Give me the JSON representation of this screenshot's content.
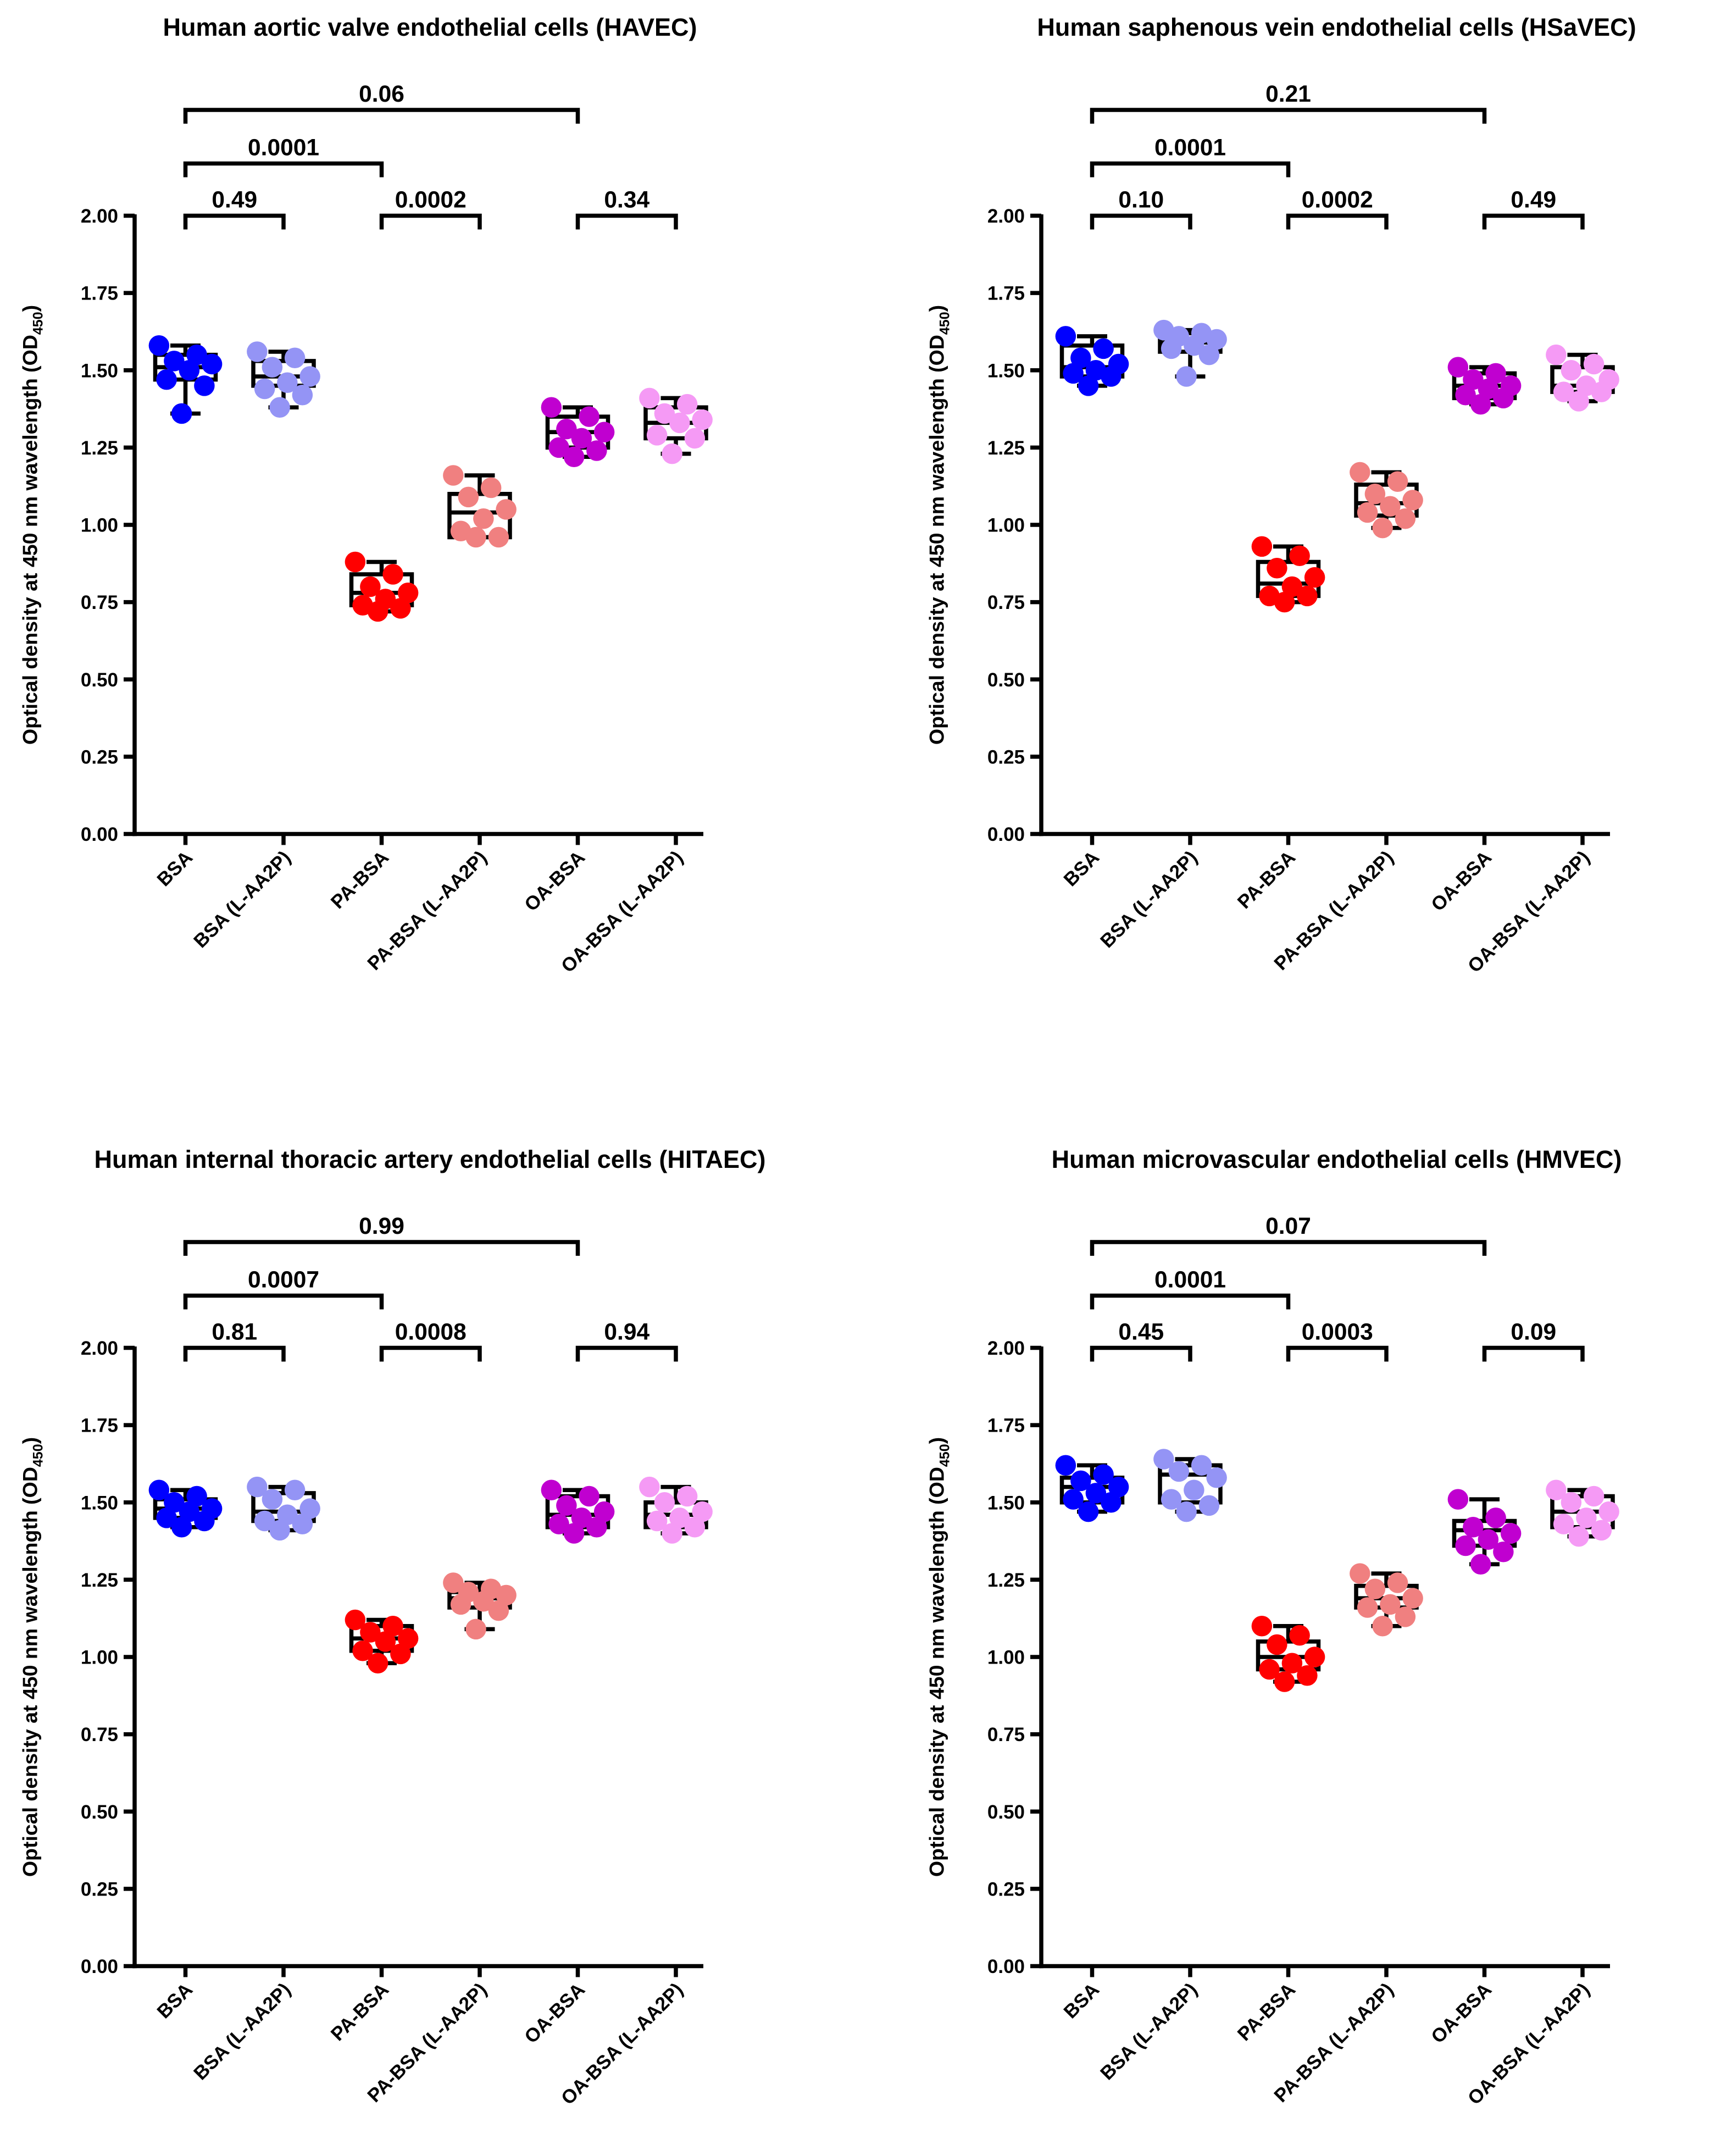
{
  "chart_data": [
    {
      "type": "box",
      "title": "Human aortic valve endothelial cells (HAVEC)",
      "ylabel": [
        "Optical density at 450 nm wavelength (OD",
        "450",
        ")"
      ],
      "ylim": [
        0,
        2
      ],
      "yticks": [
        {
          "value": 0,
          "label": "0.00"
        },
        {
          "value": 0.25,
          "label": "0.25"
        },
        {
          "value": 0.5,
          "label": "0.50"
        },
        {
          "value": 0.75,
          "label": "0.75"
        },
        {
          "value": 1,
          "label": "1.00"
        },
        {
          "value": 1.25,
          "label": "1.25"
        },
        {
          "value": 1.5,
          "label": "1.50"
        },
        {
          "value": 1.75,
          "label": "1.75"
        },
        {
          "value": 2,
          "label": "2.00"
        }
      ],
      "groups": [
        {
          "name": "BSA",
          "color": "#0000ff",
          "box": [
            1.36,
            1.47,
            1.51,
            1.55,
            1.58
          ],
          "points": [
            1.58,
            1.55,
            1.53,
            1.52,
            1.5,
            1.47,
            1.45,
            1.36
          ]
        },
        {
          "name": "BSA (L-AA2P)",
          "color": "#9494f5",
          "box": [
            1.38,
            1.45,
            1.48,
            1.53,
            1.56
          ],
          "points": [
            1.56,
            1.54,
            1.51,
            1.48,
            1.46,
            1.44,
            1.42,
            1.38
          ]
        },
        {
          "name": "PA-BSA",
          "color": "#ff0000",
          "box": [
            0.72,
            0.74,
            0.78,
            0.84,
            0.88
          ],
          "points": [
            0.88,
            0.84,
            0.8,
            0.78,
            0.76,
            0.74,
            0.73,
            0.72
          ]
        },
        {
          "name": "PA-BSA (L-AA2P)",
          "color": "#f08080",
          "box": [
            0.96,
            0.96,
            1.04,
            1.1,
            1.16
          ],
          "points": [
            1.16,
            1.12,
            1.09,
            1.05,
            1.02,
            0.98,
            0.96,
            0.96
          ]
        },
        {
          "name": "OA-BSA",
          "color": "#c000d0",
          "box": [
            1.22,
            1.25,
            1.3,
            1.35,
            1.38
          ],
          "points": [
            1.38,
            1.35,
            1.31,
            1.3,
            1.28,
            1.25,
            1.24,
            1.22
          ]
        },
        {
          "name": "OA-BSA (L-AA2P)",
          "color": "#f59af5",
          "box": [
            1.23,
            1.28,
            1.33,
            1.38,
            1.41
          ],
          "points": [
            1.41,
            1.39,
            1.36,
            1.34,
            1.33,
            1.29,
            1.28,
            1.23
          ]
        }
      ],
      "comparisons": [
        {
          "from": 0,
          "to": 4,
          "label": "0.06"
        },
        {
          "from": 0,
          "to": 2,
          "label": "0.0001"
        },
        {
          "from": 0,
          "to": 1,
          "label": "0.49"
        },
        {
          "from": 2,
          "to": 3,
          "label": "0.0002"
        },
        {
          "from": 4,
          "to": 5,
          "label": "0.34"
        }
      ]
    },
    {
      "type": "box",
      "title": "Human saphenous vein endothelial cells (HSaVEC)",
      "ylabel": [
        "Optical density at 450 nm wavelength (OD",
        "450",
        ")"
      ],
      "ylim": [
        0,
        2
      ],
      "yticks": [
        {
          "value": 0,
          "label": "0.00"
        },
        {
          "value": 0.25,
          "label": "0.25"
        },
        {
          "value": 0.5,
          "label": "0.50"
        },
        {
          "value": 0.75,
          "label": "0.75"
        },
        {
          "value": 1,
          "label": "1.00"
        },
        {
          "value": 1.25,
          "label": "1.25"
        },
        {
          "value": 1.5,
          "label": "1.50"
        },
        {
          "value": 1.75,
          "label": "1.75"
        },
        {
          "value": 2,
          "label": "2.00"
        }
      ],
      "groups": [
        {
          "name": "BSA",
          "color": "#0000ff",
          "box": [
            1.45,
            1.48,
            1.51,
            1.58,
            1.61
          ],
          "points": [
            1.61,
            1.57,
            1.54,
            1.52,
            1.5,
            1.49,
            1.48,
            1.45
          ]
        },
        {
          "name": "BSA (L-AA2P)",
          "color": "#9494f5",
          "box": [
            1.48,
            1.56,
            1.59,
            1.62,
            1.63
          ],
          "points": [
            1.63,
            1.62,
            1.61,
            1.6,
            1.58,
            1.57,
            1.55,
            1.48
          ]
        },
        {
          "name": "PA-BSA",
          "color": "#ff0000",
          "box": [
            0.75,
            0.77,
            0.81,
            0.88,
            0.93
          ],
          "points": [
            0.93,
            0.9,
            0.86,
            0.83,
            0.8,
            0.77,
            0.77,
            0.75
          ]
        },
        {
          "name": "PA-BSA (L-AA2P)",
          "color": "#f08080",
          "box": [
            0.99,
            1.03,
            1.07,
            1.13,
            1.17
          ],
          "points": [
            1.17,
            1.14,
            1.1,
            1.08,
            1.06,
            1.04,
            1.02,
            0.99
          ]
        },
        {
          "name": "OA-BSA",
          "color": "#c000d0",
          "box": [
            1.39,
            1.41,
            1.45,
            1.49,
            1.51
          ],
          "points": [
            1.51,
            1.49,
            1.47,
            1.45,
            1.44,
            1.42,
            1.41,
            1.39
          ]
        },
        {
          "name": "OA-BSA (L-AA2P)",
          "color": "#f59af5",
          "box": [
            1.4,
            1.43,
            1.45,
            1.51,
            1.55
          ],
          "points": [
            1.55,
            1.52,
            1.5,
            1.47,
            1.45,
            1.43,
            1.43,
            1.4
          ]
        }
      ],
      "comparisons": [
        {
          "from": 0,
          "to": 4,
          "label": "0.21"
        },
        {
          "from": 0,
          "to": 2,
          "label": "0.0001"
        },
        {
          "from": 0,
          "to": 1,
          "label": "0.10"
        },
        {
          "from": 2,
          "to": 3,
          "label": "0.0002"
        },
        {
          "from": 4,
          "to": 5,
          "label": "0.49"
        }
      ]
    },
    {
      "type": "box",
      "title": "Human internal thoracic artery endothelial cells (HITAEC)",
      "ylabel": [
        "Optical density at 450 nm wavelength (OD",
        "450",
        ")"
      ],
      "ylim": [
        0,
        2
      ],
      "yticks": [
        {
          "value": 0,
          "label": "0.00"
        },
        {
          "value": 0.25,
          "label": "0.25"
        },
        {
          "value": 0.5,
          "label": "0.50"
        },
        {
          "value": 0.75,
          "label": "0.75"
        },
        {
          "value": 1,
          "label": "1.00"
        },
        {
          "value": 1.25,
          "label": "1.25"
        },
        {
          "value": 1.5,
          "label": "1.50"
        },
        {
          "value": 1.75,
          "label": "1.75"
        },
        {
          "value": 2,
          "label": "2.00"
        }
      ],
      "groups": [
        {
          "name": "BSA",
          "color": "#0000ff",
          "box": [
            1.42,
            1.45,
            1.48,
            1.51,
            1.54
          ],
          "points": [
            1.54,
            1.52,
            1.5,
            1.48,
            1.47,
            1.45,
            1.44,
            1.42
          ]
        },
        {
          "name": "BSA (L-AA2P)",
          "color": "#9494f5",
          "box": [
            1.41,
            1.44,
            1.47,
            1.53,
            1.55
          ],
          "points": [
            1.55,
            1.54,
            1.51,
            1.48,
            1.46,
            1.44,
            1.43,
            1.41
          ]
        },
        {
          "name": "PA-BSA",
          "color": "#ff0000",
          "box": [
            0.98,
            1.02,
            1.06,
            1.1,
            1.12
          ],
          "points": [
            1.12,
            1.1,
            1.08,
            1.06,
            1.05,
            1.02,
            1.01,
            0.98
          ]
        },
        {
          "name": "PA-BSA (L-AA2P)",
          "color": "#f08080",
          "box": [
            1.09,
            1.16,
            1.19,
            1.21,
            1.24
          ],
          "points": [
            1.24,
            1.22,
            1.21,
            1.2,
            1.18,
            1.17,
            1.15,
            1.09
          ]
        },
        {
          "name": "OA-BSA",
          "color": "#c000d0",
          "box": [
            1.4,
            1.42,
            1.46,
            1.52,
            1.54
          ],
          "points": [
            1.54,
            1.52,
            1.49,
            1.47,
            1.45,
            1.43,
            1.42,
            1.4
          ]
        },
        {
          "name": "OA-BSA (L-AA2P)",
          "color": "#f59af5",
          "box": [
            1.4,
            1.42,
            1.46,
            1.5,
            1.55
          ],
          "points": [
            1.55,
            1.52,
            1.5,
            1.47,
            1.45,
            1.44,
            1.42,
            1.4
          ]
        }
      ],
      "comparisons": [
        {
          "from": 0,
          "to": 4,
          "label": "0.99"
        },
        {
          "from": 0,
          "to": 2,
          "label": "0.0007"
        },
        {
          "from": 0,
          "to": 1,
          "label": "0.81"
        },
        {
          "from": 2,
          "to": 3,
          "label": "0.0008"
        },
        {
          "from": 4,
          "to": 5,
          "label": "0.94"
        }
      ]
    },
    {
      "type": "box",
      "title": "Human microvascular endothelial cells (HMVEC)",
      "ylabel": [
        "Optical density at 450 nm wavelength (OD",
        "450",
        ")"
      ],
      "ylim": [
        0,
        2
      ],
      "yticks": [
        {
          "value": 0,
          "label": "0.00"
        },
        {
          "value": 0.25,
          "label": "0.25"
        },
        {
          "value": 0.5,
          "label": "0.50"
        },
        {
          "value": 0.75,
          "label": "0.75"
        },
        {
          "value": 1,
          "label": "1.00"
        },
        {
          "value": 1.25,
          "label": "1.25"
        },
        {
          "value": 1.5,
          "label": "1.50"
        },
        {
          "value": 1.75,
          "label": "1.75"
        },
        {
          "value": 2,
          "label": "2.00"
        }
      ],
      "groups": [
        {
          "name": "BSA",
          "color": "#0000ff",
          "box": [
            1.47,
            1.5,
            1.55,
            1.58,
            1.62
          ],
          "points": [
            1.62,
            1.59,
            1.57,
            1.55,
            1.53,
            1.51,
            1.5,
            1.47
          ]
        },
        {
          "name": "BSA (L-AA2P)",
          "color": "#9494f5",
          "box": [
            1.47,
            1.5,
            1.59,
            1.62,
            1.64
          ],
          "points": [
            1.64,
            1.62,
            1.6,
            1.58,
            1.54,
            1.51,
            1.49,
            1.47
          ]
        },
        {
          "name": "PA-BSA",
          "color": "#ff0000",
          "box": [
            0.92,
            0.96,
            1.0,
            1.05,
            1.1
          ],
          "points": [
            1.1,
            1.07,
            1.04,
            1.0,
            0.98,
            0.96,
            0.94,
            0.92
          ]
        },
        {
          "name": "PA-BSA (L-AA2P)",
          "color": "#f08080",
          "box": [
            1.1,
            1.16,
            1.19,
            1.23,
            1.27
          ],
          "points": [
            1.27,
            1.24,
            1.22,
            1.19,
            1.17,
            1.16,
            1.13,
            1.1
          ]
        },
        {
          "name": "OA-BSA",
          "color": "#c000d0",
          "box": [
            1.3,
            1.36,
            1.41,
            1.44,
            1.51
          ],
          "points": [
            1.51,
            1.45,
            1.42,
            1.4,
            1.38,
            1.36,
            1.34,
            1.3
          ]
        },
        {
          "name": "OA-BSA (L-AA2P)",
          "color": "#f59af5",
          "box": [
            1.39,
            1.42,
            1.47,
            1.52,
            1.54
          ],
          "points": [
            1.54,
            1.52,
            1.5,
            1.47,
            1.45,
            1.43,
            1.41,
            1.39
          ]
        }
      ],
      "comparisons": [
        {
          "from": 0,
          "to": 4,
          "label": "0.07"
        },
        {
          "from": 0,
          "to": 2,
          "label": "0.0001"
        },
        {
          "from": 0,
          "to": 1,
          "label": "0.45"
        },
        {
          "from": 2,
          "to": 3,
          "label": "0.0003"
        },
        {
          "from": 4,
          "to": 5,
          "label": "0.09"
        }
      ]
    }
  ]
}
